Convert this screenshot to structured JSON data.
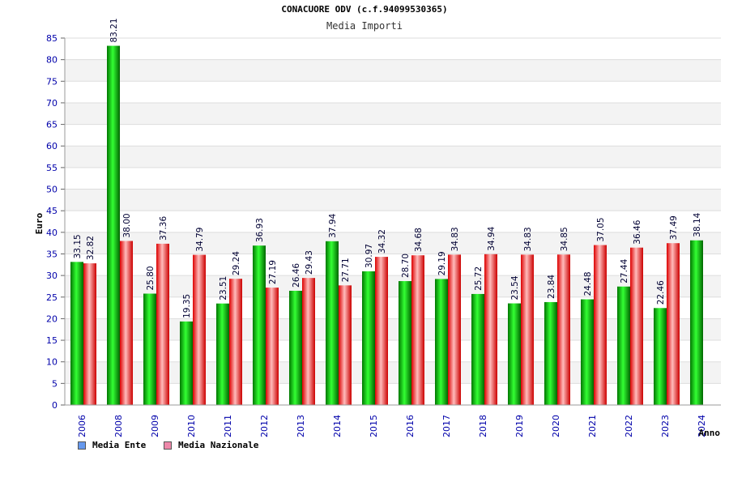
{
  "chart_data": {
    "type": "bar",
    "title": "CONACUORE ODV (c.f.94099530365)",
    "subtitle": "Media Importi",
    "ylabel": "Euro",
    "xlabel": "Anno",
    "ylim": [
      0,
      85
    ],
    "yticks": [
      "0",
      "5",
      "10",
      "15",
      "20",
      "25",
      "30",
      "35",
      "40",
      "45",
      "50",
      "55",
      "60",
      "65",
      "70",
      "75",
      "80",
      "85"
    ],
    "categories": [
      "2006",
      "2008",
      "2009",
      "2010",
      "2011",
      "2012",
      "2013",
      "2014",
      "2015",
      "2016",
      "2017",
      "2018",
      "2019",
      "2020",
      "2021",
      "2022",
      "2023",
      "2024"
    ],
    "series": [
      {
        "name": "Media Ente",
        "values": [
          33.15,
          83.21,
          25.8,
          19.35,
          23.51,
          36.93,
          26.46,
          37.94,
          30.97,
          28.7,
          29.19,
          25.72,
          23.54,
          23.84,
          24.48,
          27.44,
          22.46,
          38.14
        ],
        "labels": [
          "33.15",
          "83.21",
          "25.80",
          "19.35",
          "23.51",
          "36.93",
          "26.46",
          "37.94",
          "30.97",
          "28.70",
          "29.19",
          "25.72",
          "23.54",
          "23.84",
          "24.48",
          "27.44",
          "22.46",
          "38.14"
        ]
      },
      {
        "name": "Media Nazionale",
        "values": [
          32.82,
          38.0,
          37.36,
          34.79,
          29.24,
          27.19,
          29.43,
          27.71,
          34.32,
          34.68,
          34.83,
          34.94,
          34.83,
          34.85,
          37.05,
          36.46,
          37.49,
          null
        ],
        "labels": [
          "32.82",
          "38.00",
          "37.36",
          "34.79",
          "29.24",
          "27.19",
          "29.43",
          "27.71",
          "34.32",
          "34.68",
          "34.83",
          "34.94",
          "34.83",
          "34.85",
          "37.05",
          "36.46",
          "37.49",
          ""
        ]
      }
    ],
    "colors": {
      "ente_light": "#33ff33",
      "ente_dark": "#007700",
      "naz_light": "#ffbbbb",
      "naz_dark": "#dd0000",
      "grid_band": "#f3f3f3",
      "axis_text": "#0000aa",
      "legend_ente": "#6699ee",
      "legend_naz": "#ee88aa"
    }
  }
}
